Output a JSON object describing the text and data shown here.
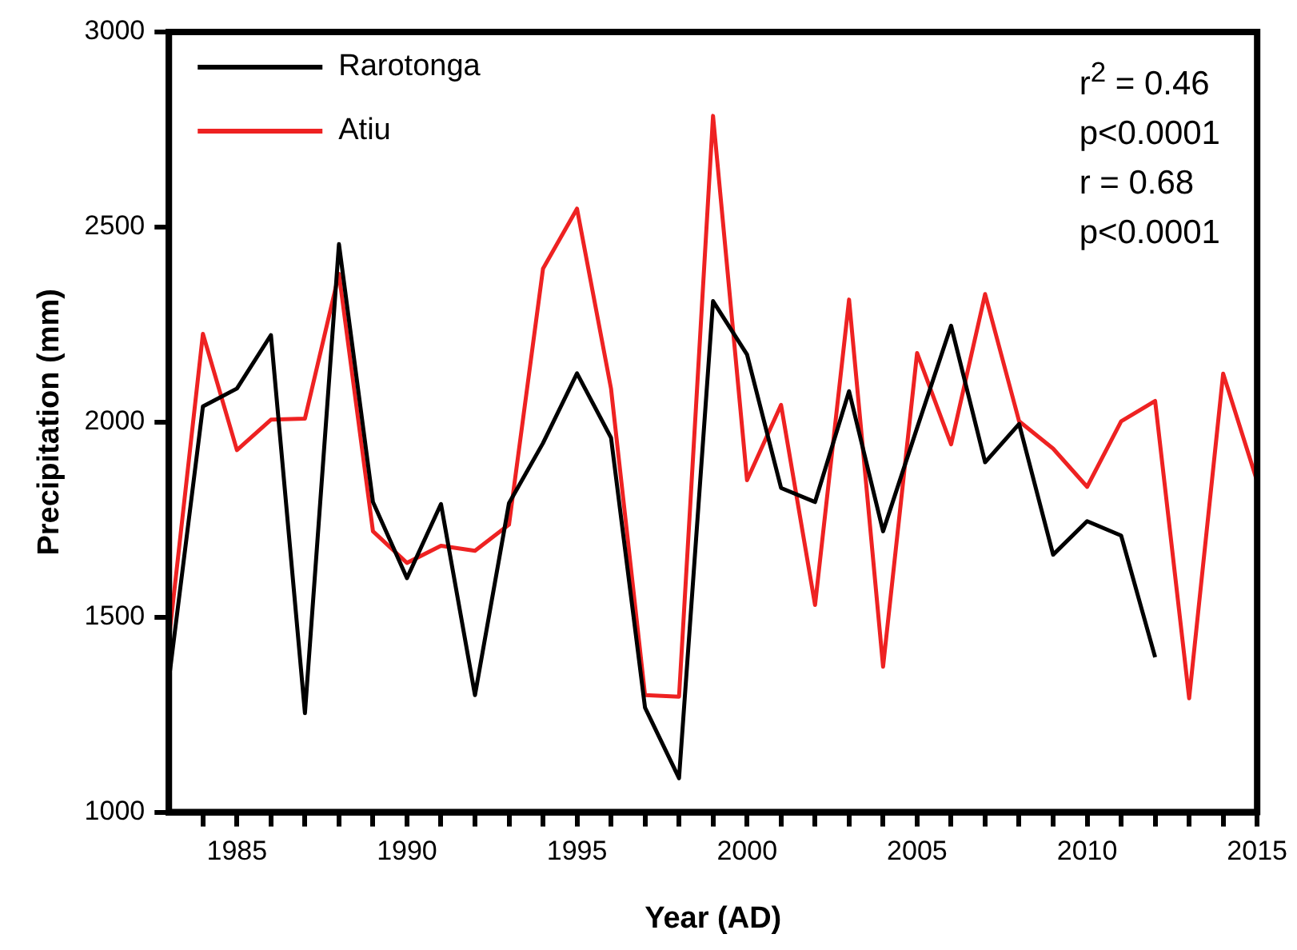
{
  "chart_data": {
    "type": "line",
    "xlabel": "Year (AD)",
    "ylabel": "Precipitation (mm)",
    "xlim": [
      1983,
      2015
    ],
    "xticks": [
      {
        "value": 1984,
        "label": null
      },
      1985,
      {
        "value": 1986,
        "label": null
      },
      {
        "value": 1987,
        "label": null
      },
      {
        "value": 1988,
        "label": null
      },
      {
        "value": 1989,
        "label": null
      },
      1990,
      {
        "value": 1991,
        "label": null
      },
      {
        "value": 1992,
        "label": null
      },
      {
        "value": 1993,
        "label": null
      },
      {
        "value": 1994,
        "label": null
      },
      1995,
      {
        "value": 1996,
        "label": null
      },
      {
        "value": 1997,
        "label": null
      },
      {
        "value": 1998,
        "label": null
      },
      {
        "value": 1999,
        "label": null
      },
      2000,
      {
        "value": 2001,
        "label": null
      },
      {
        "value": 2002,
        "label": null
      },
      {
        "value": 2003,
        "label": null
      },
      {
        "value": 2004,
        "label": null
      },
      2005,
      {
        "value": 2006,
        "label": null
      },
      {
        "value": 2007,
        "label": null
      },
      {
        "value": 2008,
        "label": null
      },
      {
        "value": 2009,
        "label": null
      },
      2010,
      {
        "value": 2011,
        "label": null
      },
      {
        "value": 2012,
        "label": null
      },
      {
        "value": 2013,
        "label": null
      },
      {
        "value": 2014,
        "label": null
      },
      2015
    ],
    "ylim": [
      1000,
      3000
    ],
    "yticks": [
      1000,
      1500,
      2000,
      2500,
      3000
    ],
    "x": [
      1983,
      1984,
      1985,
      1986,
      1987,
      1988,
      1989,
      1990,
      1991,
      1992,
      1993,
      1994,
      1995,
      1996,
      1997,
      1998,
      1999,
      2000,
      2001,
      2002,
      2003,
      2004,
      2005,
      2006,
      2007,
      2008,
      2009,
      2010,
      2011,
      2012,
      2013,
      2014,
      2015
    ],
    "series": [
      {
        "name": "Rarotonga",
        "color": "#000000",
        "values": [
          1340,
          2040,
          2086,
          2223,
          1254,
          2456,
          1795,
          1600,
          1790,
          1300,
          1792,
          1946,
          2125,
          1960,
          1268,
          1087,
          2310,
          2173,
          1831,
          1795,
          2079,
          1720,
          1985,
          2247,
          1897,
          1995,
          1660,
          1746,
          1709,
          1397,
          null,
          null,
          null
        ]
      },
      {
        "name": "Atiu",
        "color": "#ee2222",
        "values": [
          1443,
          2226,
          1928,
          2006,
          2009,
          2380,
          1720,
          1639,
          1683,
          1670,
          1737,
          2393,
          2547,
          2086,
          1300,
          1296,
          2785,
          1851,
          2044,
          1531,
          2314,
          1373,
          2177,
          1943,
          2328,
          2002,
          1932,
          1834,
          2002,
          2054,
          1292,
          2124,
          1848
        ]
      }
    ],
    "legend": "top left",
    "grid": false,
    "marker": "none",
    "line_style": "solid",
    "annotations": [
      "r$^{2}$ = 0.46",
      "p<0.0001",
      "r = 0.68",
      "p<0.0001"
    ]
  }
}
